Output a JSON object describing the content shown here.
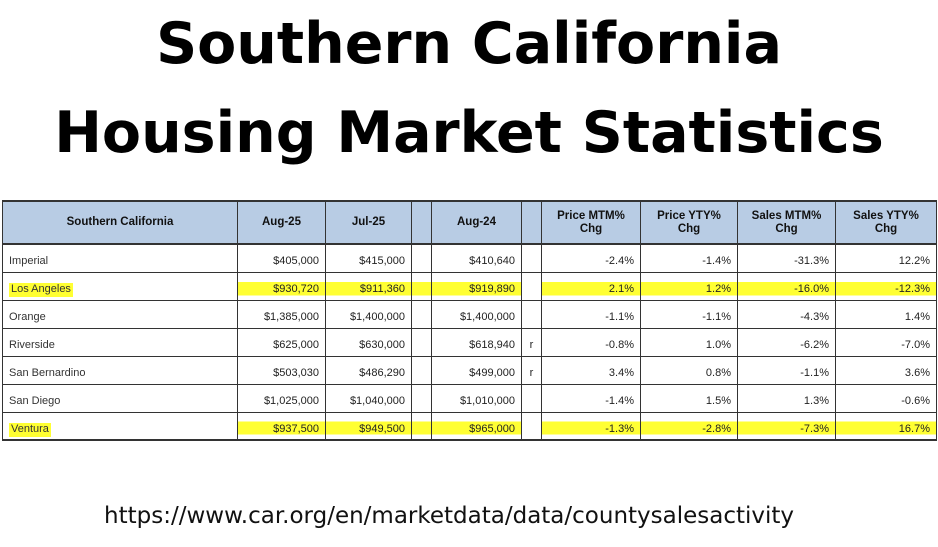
{
  "title": {
    "line1": "Southern California",
    "line2": "Housing Market Statistics"
  },
  "table": {
    "headers": [
      "Southern California",
      "Aug-25",
      "Jul-25",
      "",
      "Aug-24",
      "",
      "Price MTM% Chg",
      "Price YTY% Chg",
      "Sales MTM% Chg",
      "Sales YTY% Chg"
    ],
    "rows": [
      {
        "region": "Imperial",
        "aug25": "$405,000",
        "jul25": "$415,000",
        "aug24": "$410,640",
        "flag": "",
        "price_mtm": "-2.4%",
        "price_yty": "-1.4%",
        "sales_mtm": "-31.3%",
        "sales_yty": "12.2%",
        "highlighted": false
      },
      {
        "region": "Los Angeles",
        "aug25": "$930,720",
        "jul25": "$911,360",
        "aug24": "$919,890",
        "flag": "",
        "price_mtm": "2.1%",
        "price_yty": "1.2%",
        "sales_mtm": "-16.0%",
        "sales_yty": "-12.3%",
        "highlighted": true
      },
      {
        "region": "Orange",
        "aug25": "$1,385,000",
        "jul25": "$1,400,000",
        "aug24": "$1,400,000",
        "flag": "",
        "price_mtm": "-1.1%",
        "price_yty": "-1.1%",
        "sales_mtm": "-4.3%",
        "sales_yty": "1.4%",
        "highlighted": false
      },
      {
        "region": "Riverside",
        "aug25": "$625,000",
        "jul25": "$630,000",
        "aug24": "$618,940",
        "flag": "r",
        "price_mtm": "-0.8%",
        "price_yty": "1.0%",
        "sales_mtm": "-6.2%",
        "sales_yty": "-7.0%",
        "highlighted": false
      },
      {
        "region": "San Bernardino",
        "aug25": "$503,030",
        "jul25": "$486,290",
        "aug24": "$499,000",
        "flag": "r",
        "price_mtm": "3.4%",
        "price_yty": "0.8%",
        "sales_mtm": "-1.1%",
        "sales_yty": "3.6%",
        "highlighted": false
      },
      {
        "region": "San Diego",
        "aug25": "$1,025,000",
        "jul25": "$1,040,000",
        "aug24": "$1,010,000",
        "flag": "",
        "price_mtm": "-1.4%",
        "price_yty": "1.5%",
        "sales_mtm": "1.3%",
        "sales_yty": "-0.6%",
        "highlighted": false
      },
      {
        "region": "Ventura",
        "aug25": "$937,500",
        "jul25": "$949,500",
        "aug24": "$965,000",
        "flag": "",
        "price_mtm": "-1.3%",
        "price_yty": "-2.8%",
        "sales_mtm": "-7.3%",
        "sales_yty": "16.7%",
        "highlighted": true
      }
    ]
  },
  "source_url": "https://www.car.org/en/marketdata/data/countysalesactivity",
  "colors": {
    "header_bg": "#b8cce4",
    "highlight": "#ffff33",
    "border": "#333333"
  }
}
